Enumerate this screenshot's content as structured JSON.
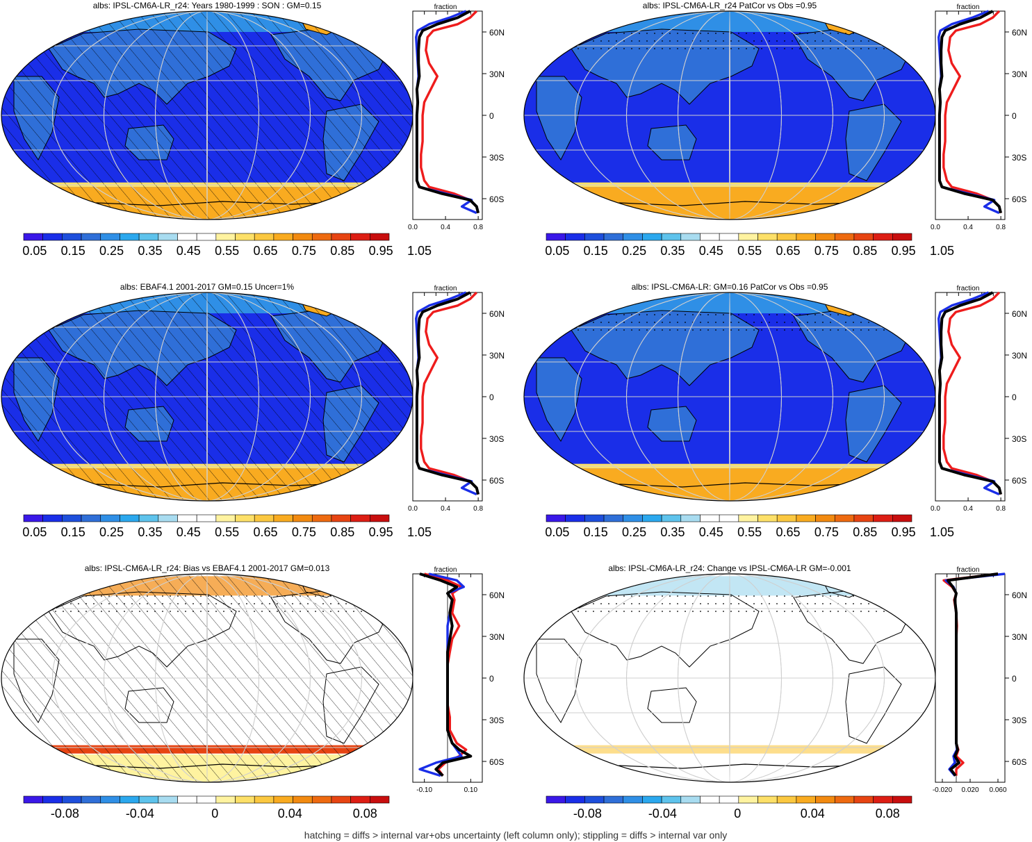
{
  "palette": {
    "abs": [
      "#3a18e8",
      "#1a2ee8",
      "#1e4fdc",
      "#2f6fd8",
      "#2f8fe6",
      "#2ba8ee",
      "#5ec3ec",
      "#a8dcf0",
      "#ffffff",
      "#ffffff",
      "#fff3a0",
      "#fde068",
      "#fbc840",
      "#f9ab20",
      "#f28a10",
      "#ee6a10",
      "#e74412",
      "#dd1e14",
      "#c80e0e"
    ],
    "diff": [
      "#3a18e8",
      "#1a2ee8",
      "#1e4fdc",
      "#2f6fd8",
      "#2f8fe6",
      "#2ba8ee",
      "#5ec3ec",
      "#a8dcf0",
      "#ffffff",
      "#ffffff",
      "#fff3a0",
      "#fde068",
      "#fbc840",
      "#f9ab20",
      "#f28a10",
      "#ee6a10",
      "#e74412",
      "#dd1e14",
      "#c80e0e"
    ],
    "ocean": "#1a2ee8",
    "land": "#2f6fd8",
    "ice": "#f9ab20",
    "red_line": "#ee1c1c",
    "blue_line": "#1a2ee8",
    "black_line": "#000000"
  },
  "colorbar_abs_labels": [
    "0.05",
    "0.15",
    "0.25",
    "0.35",
    "0.45",
    "0.55",
    "0.65",
    "0.75",
    "0.85",
    "0.95",
    "1.05"
  ],
  "colorbar_diff_labels": [
    "-0.08",
    "-0.04",
    "0",
    "0.04",
    "0.08"
  ],
  "lat_labels": [
    "60N",
    "30N",
    "0",
    "30S",
    "60S"
  ],
  "caption": "hatching = diffs > internal var+obs uncertainty (left column only); stippling = diffs > internal var only",
  "chart_data": [
    {
      "type": "heatmap",
      "title": "albs: IPSL-CM6A-LR_r24: Years 1980-1999 : SON : GM=0.15",
      "scale": "abs",
      "hatching": true,
      "profile": {
        "xlabel": "fraction",
        "xticks": [
          "0.0",
          "0.4",
          "0.8"
        ],
        "xlim": [
          0,
          0.85
        ],
        "lat": [
          80,
          75,
          70,
          65,
          60,
          50,
          40,
          30,
          20,
          10,
          0,
          -10,
          -20,
          -30,
          -40,
          -50,
          -55,
          -60,
          -65,
          -70,
          -75
        ],
        "series": [
          {
            "color": "black",
            "values": [
              0.7,
              0.55,
              0.3,
              0.12,
              0.08,
              0.07,
              0.07,
              0.08,
              0.05,
              0.06,
              0.05,
              0.05,
              0.05,
              0.05,
              0.05,
              0.05,
              0.08,
              0.35,
              0.7,
              0.78,
              0.8
            ]
          },
          {
            "color": "red",
            "values": [
              0.78,
              0.7,
              0.55,
              0.25,
              0.18,
              0.16,
              0.2,
              0.3,
              0.22,
              0.14,
              0.12,
              0.12,
              0.12,
              0.1,
              0.1,
              0.14,
              0.2,
              0.5,
              0.7,
              0.78,
              0.8
            ]
          },
          {
            "color": "blue",
            "values": [
              0.65,
              0.45,
              0.2,
              0.06,
              0.04,
              0.05,
              0.06,
              0.07,
              0.05,
              0.06,
              0.05,
              0.05,
              0.05,
              0.05,
              0.05,
              0.05,
              0.08,
              0.4,
              0.72,
              0.6,
              0.78
            ]
          }
        ]
      }
    },
    {
      "type": "heatmap",
      "title": "albs: IPSL-CM6A-LR_r24 PatCor vs Obs =0.95",
      "scale": "abs",
      "hatching": false,
      "profile": {
        "xlabel": "fraction",
        "xticks": [
          "0.0",
          "0.4",
          "0.8"
        ],
        "xlim": [
          0,
          0.85
        ],
        "lat": [
          80,
          75,
          70,
          65,
          60,
          50,
          40,
          30,
          20,
          10,
          0,
          -10,
          -20,
          -30,
          -40,
          -50,
          -55,
          -60,
          -65,
          -70,
          -75
        ],
        "series": [
          {
            "color": "black",
            "values": [
              0.7,
              0.55,
              0.3,
              0.12,
              0.08,
              0.07,
              0.07,
              0.08,
              0.05,
              0.06,
              0.05,
              0.05,
              0.05,
              0.05,
              0.05,
              0.05,
              0.08,
              0.35,
              0.7,
              0.78,
              0.8
            ]
          },
          {
            "color": "red",
            "values": [
              0.78,
              0.7,
              0.55,
              0.25,
              0.18,
              0.16,
              0.2,
              0.3,
              0.22,
              0.14,
              0.12,
              0.12,
              0.12,
              0.1,
              0.1,
              0.14,
              0.2,
              0.5,
              0.7,
              0.78,
              0.8
            ]
          },
          {
            "color": "blue",
            "values": [
              0.65,
              0.45,
              0.2,
              0.06,
              0.04,
              0.05,
              0.06,
              0.07,
              0.05,
              0.06,
              0.05,
              0.05,
              0.05,
              0.05,
              0.05,
              0.05,
              0.08,
              0.4,
              0.72,
              0.6,
              0.78
            ]
          }
        ]
      }
    },
    {
      "type": "heatmap",
      "title": "albs: EBAF4.1 2001-2017 GM=0.15 Uncer=1%",
      "scale": "abs",
      "hatching": true,
      "profile": {
        "xlabel": "fraction",
        "xticks": [
          "0.0",
          "0.4",
          "0.8"
        ],
        "xlim": [
          0,
          0.85
        ],
        "lat": [
          80,
          75,
          70,
          65,
          60,
          50,
          40,
          30,
          20,
          10,
          0,
          -10,
          -20,
          -30,
          -40,
          -50,
          -55,
          -60,
          -65,
          -70,
          -75
        ],
        "series": [
          {
            "color": "black",
            "values": [
              0.7,
              0.55,
              0.3,
              0.12,
              0.08,
              0.07,
              0.07,
              0.08,
              0.05,
              0.06,
              0.05,
              0.05,
              0.05,
              0.05,
              0.05,
              0.05,
              0.08,
              0.35,
              0.7,
              0.78,
              0.8
            ]
          },
          {
            "color": "red",
            "values": [
              0.78,
              0.7,
              0.55,
              0.25,
              0.18,
              0.16,
              0.2,
              0.3,
              0.22,
              0.14,
              0.12,
              0.12,
              0.12,
              0.1,
              0.1,
              0.14,
              0.2,
              0.5,
              0.7,
              0.78,
              0.8
            ]
          },
          {
            "color": "blue",
            "values": [
              0.65,
              0.45,
              0.2,
              0.06,
              0.04,
              0.05,
              0.06,
              0.07,
              0.05,
              0.06,
              0.05,
              0.05,
              0.05,
              0.05,
              0.05,
              0.05,
              0.08,
              0.4,
              0.72,
              0.6,
              0.78
            ]
          }
        ]
      }
    },
    {
      "type": "heatmap",
      "title": "albs: IPSL-CM6A-LR: GM=0.16 PatCor vs Obs =0.95",
      "scale": "abs",
      "hatching": false,
      "profile": {
        "xlabel": "fraction",
        "xticks": [
          "0.0",
          "0.4",
          "0.8"
        ],
        "xlim": [
          0,
          0.85
        ],
        "lat": [
          80,
          75,
          70,
          65,
          60,
          50,
          40,
          30,
          20,
          10,
          0,
          -10,
          -20,
          -30,
          -40,
          -50,
          -55,
          -60,
          -65,
          -70,
          -75
        ],
        "series": [
          {
            "color": "black",
            "values": [
              0.7,
              0.55,
              0.3,
              0.12,
              0.08,
              0.07,
              0.07,
              0.08,
              0.05,
              0.06,
              0.05,
              0.05,
              0.05,
              0.05,
              0.05,
              0.05,
              0.08,
              0.35,
              0.7,
              0.78,
              0.8
            ]
          },
          {
            "color": "red",
            "values": [
              0.78,
              0.7,
              0.55,
              0.25,
              0.18,
              0.16,
              0.2,
              0.3,
              0.22,
              0.14,
              0.12,
              0.12,
              0.12,
              0.1,
              0.1,
              0.14,
              0.2,
              0.5,
              0.7,
              0.78,
              0.8
            ]
          },
          {
            "color": "blue",
            "values": [
              0.65,
              0.45,
              0.2,
              0.06,
              0.04,
              0.05,
              0.06,
              0.07,
              0.05,
              0.06,
              0.05,
              0.05,
              0.05,
              0.05,
              0.05,
              0.05,
              0.08,
              0.4,
              0.72,
              0.6,
              0.78
            ]
          }
        ]
      }
    },
    {
      "type": "heatmap",
      "title": "albs: IPSL-CM6A-LR_r24: Bias vs EBAF4.1 2001-2017  GM=0.013",
      "scale": "diff",
      "hatching": true,
      "profile": {
        "xlabel": "fraction",
        "xticks": [
          "-0.10",
          "0.10"
        ],
        "xlim": [
          -0.15,
          0.15
        ],
        "lat": [
          80,
          75,
          70,
          65,
          60,
          50,
          40,
          30,
          20,
          10,
          0,
          -10,
          -20,
          -30,
          -40,
          -50,
          -55,
          -60,
          -65,
          -70,
          -75
        ],
        "series": [
          {
            "color": "black",
            "values": [
              -0.12,
              -0.03,
              0.04,
              0.0,
              0.02,
              0.01,
              0.02,
              0.01,
              0.0,
              0.0,
              0.0,
              0.0,
              0.0,
              0.0,
              0.0,
              0.02,
              0.05,
              0.1,
              -0.02,
              -0.05,
              -0.02
            ]
          },
          {
            "color": "red",
            "values": [
              -0.1,
              0.0,
              0.06,
              0.02,
              0.03,
              0.02,
              0.05,
              0.02,
              0.01,
              0.0,
              0.0,
              0.0,
              0.0,
              0.01,
              0.01,
              0.04,
              0.08,
              0.05,
              -0.01,
              -0.04,
              -0.02
            ]
          },
          {
            "color": "blue",
            "values": [
              -0.08,
              0.04,
              0.07,
              0.0,
              0.02,
              0.01,
              0.0,
              0.0,
              0.0,
              0.0,
              0.0,
              0.0,
              0.0,
              0.0,
              0.0,
              0.02,
              0.04,
              0.06,
              -0.05,
              -0.12,
              -0.03
            ]
          }
        ]
      }
    },
    {
      "type": "heatmap",
      "title": "albs: IPSL-CM6A-LR_r24: Change vs IPSL-CM6A-LR GM=-0.001",
      "scale": "diff",
      "hatching": false,
      "profile": {
        "xlabel": "fraction",
        "xticks": [
          "-0.020",
          "0.020",
          "0.060"
        ],
        "xlim": [
          -0.03,
          0.07
        ],
        "lat": [
          80,
          75,
          70,
          65,
          60,
          50,
          40,
          30,
          20,
          10,
          0,
          -10,
          -20,
          -30,
          -40,
          -50,
          -55,
          -60,
          -65,
          -70,
          -75
        ],
        "series": [
          {
            "color": "black",
            "values": [
              0.06,
              -0.012,
              -0.005,
              0.0,
              -0.002,
              0.0,
              0.0,
              0.0,
              0.0,
              0.0,
              0.0,
              0.0,
              0.0,
              0.0,
              0.0,
              0.0,
              0.002,
              -0.002,
              0.004,
              -0.008,
              -0.001
            ]
          },
          {
            "color": "red",
            "values": [
              0.06,
              -0.018,
              -0.006,
              0.0,
              -0.003,
              0.0,
              0.001,
              0.0,
              0.0,
              0.0,
              0.0,
              0.0,
              0.0,
              0.0,
              0.0,
              0.0,
              0.003,
              0.0,
              0.01,
              0.0,
              0.0
            ]
          },
          {
            "color": "blue",
            "values": [
              0.07,
              -0.015,
              -0.004,
              0.0,
              -0.002,
              0.0,
              0.0,
              0.0,
              0.0,
              0.0,
              0.0,
              0.0,
              0.0,
              0.0,
              0.0,
              0.0,
              0.001,
              -0.004,
              -0.002,
              -0.01,
              -0.002
            ]
          }
        ]
      }
    }
  ]
}
